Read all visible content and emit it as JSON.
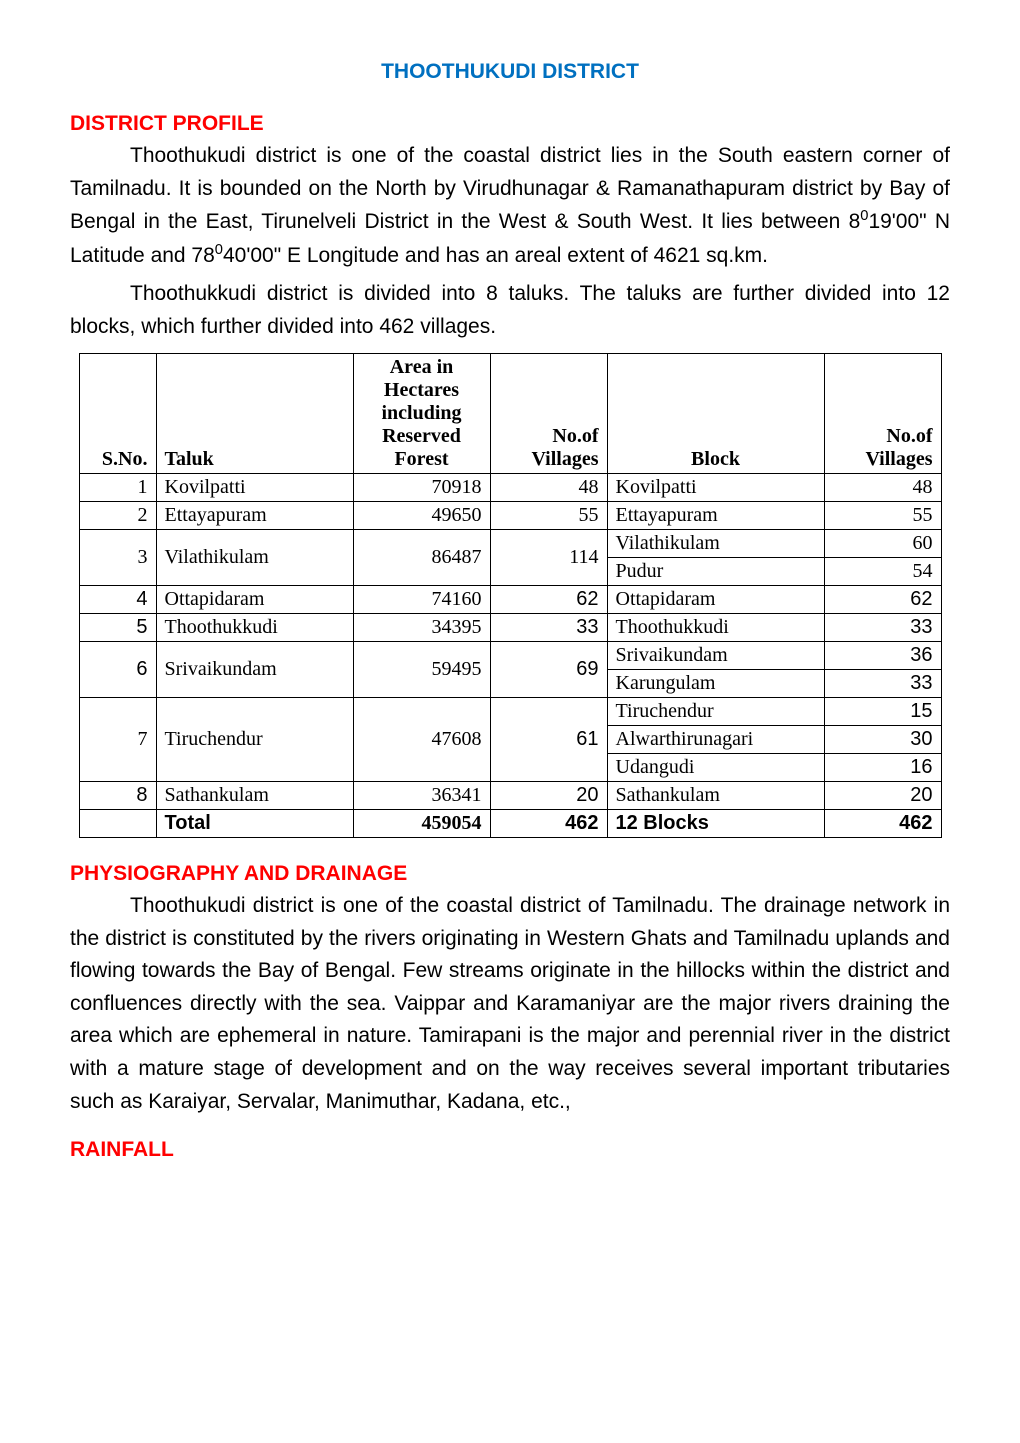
{
  "colors": {
    "heading": "#ff0000",
    "title": "#0070c0",
    "body": "#000000",
    "background": "#ffffff",
    "border": "#000000"
  },
  "title": "THOOTHUKUDI DISTRICT",
  "sections": {
    "profile": {
      "heading": "DISTRICT  PROFILE",
      "para1_pre": "Thoothukudi district is one of the coastal district lies in the South eastern corner of Tamilnadu.  It is bounded on the North by Virudhunagar & Ramanathapuram  district by Bay of Bengal in the East, Tirunelveli District in the West & South West.  It lies between 8",
      "para1_sup1": "0",
      "para1_mid": "19'00\" N Latitude and 78",
      "para1_sup2": "0",
      "para1_post": "40'00\" E Longitude and has an areal extent of 4621 sq.km.",
      "para2": "Thoothukkudi district is divided into 8 taluks. The taluks are further divided into 12 blocks, which further divided into 462 villages."
    },
    "physiography": {
      "heading": "PHYSIOGRAPHY  AND  DRAINAGE",
      "para": "Thoothukudi district is one of the coastal district of Tamilnadu.  The drainage network in the district is constituted by the rivers originating in Western Ghats and Tamilnadu uplands and flowing towards the Bay of Bengal.   Few streams originate in the hillocks within the district and confluences directly with the sea.  Vaippar and Karamaniyar are the major rivers draining the area which are ephemeral in nature.  Tamirapani is the major and perennial river in the district with a mature stage of development and on the way receives several important tributaries such as Karaiyar, Servalar, Manimuthar, Kadana, etc.,"
    },
    "rainfall": {
      "heading": "RAINFALL"
    }
  },
  "table": {
    "headers": {
      "sno": "S.No.",
      "taluk": "Taluk",
      "area": "Area in Hectares including Reserved Forest",
      "villages1": "No.of Villages",
      "block": "Block",
      "villages2": "No.of Villages"
    },
    "rows": [
      {
        "sno": "1",
        "taluk": "Kovilpatti",
        "area": "70918",
        "v1": "48",
        "blocks": [
          {
            "name": "Kovilpatti",
            "v": "48"
          }
        ],
        "v1_arial": false
      },
      {
        "sno": "2",
        "taluk": "Ettayapuram",
        "area": "49650",
        "v1": "55",
        "blocks": [
          {
            "name": "Ettayapuram",
            "v": "55"
          }
        ],
        "v1_arial": false
      },
      {
        "sno": "3",
        "taluk": "Vilathikulam",
        "area": "86487",
        "v1": "114",
        "blocks": [
          {
            "name": "Vilathikulam",
            "v": "60"
          },
          {
            "name": "Pudur",
            "v": "54"
          }
        ],
        "v1_arial": false
      },
      {
        "sno": "4",
        "taluk": "Ottapidaram",
        "area": "74160",
        "v1": "62",
        "blocks": [
          {
            "name": "Ottapidaram",
            "v": "62"
          }
        ],
        "sno_arial": true,
        "v1_arial": true,
        "v2_arial": true
      },
      {
        "sno": "5",
        "taluk": "Thoothukkudi",
        "area": "34395",
        "v1": "33",
        "blocks": [
          {
            "name": "Thoothukkudi",
            "v": "33"
          }
        ],
        "sno_arial": true,
        "v1_arial": true,
        "v2_arial": true
      },
      {
        "sno": "6",
        "taluk": "Srivaikundam",
        "area": "59495",
        "v1": "69",
        "blocks": [
          {
            "name": "Srivaikundam",
            "v": "36"
          },
          {
            "name": "Karungulam",
            "v": "33"
          }
        ],
        "sno_arial": true,
        "v1_arial": true,
        "v2_arial": true
      },
      {
        "sno": "7",
        "taluk": "Tiruchendur",
        "area": "47608",
        "v1": "61",
        "blocks": [
          {
            "name": "Tiruchendur",
            "v": "15"
          },
          {
            "name": "Alwarthirunagari",
            "v": "30"
          },
          {
            "name": "Udangudi",
            "v": "16"
          }
        ],
        "v1_arial": true,
        "v2_arial": true
      },
      {
        "sno": "8",
        "taluk": "Sathankulam",
        "area": "36341",
        "v1": "20",
        "blocks": [
          {
            "name": "Sathankulam",
            "v": "20"
          }
        ],
        "sno_arial": true,
        "v1_arial": true,
        "v2_arial": true
      }
    ],
    "total": {
      "label": "Total",
      "area": "459054",
      "v1": "462",
      "block": "12 Blocks",
      "v2": "462"
    }
  }
}
